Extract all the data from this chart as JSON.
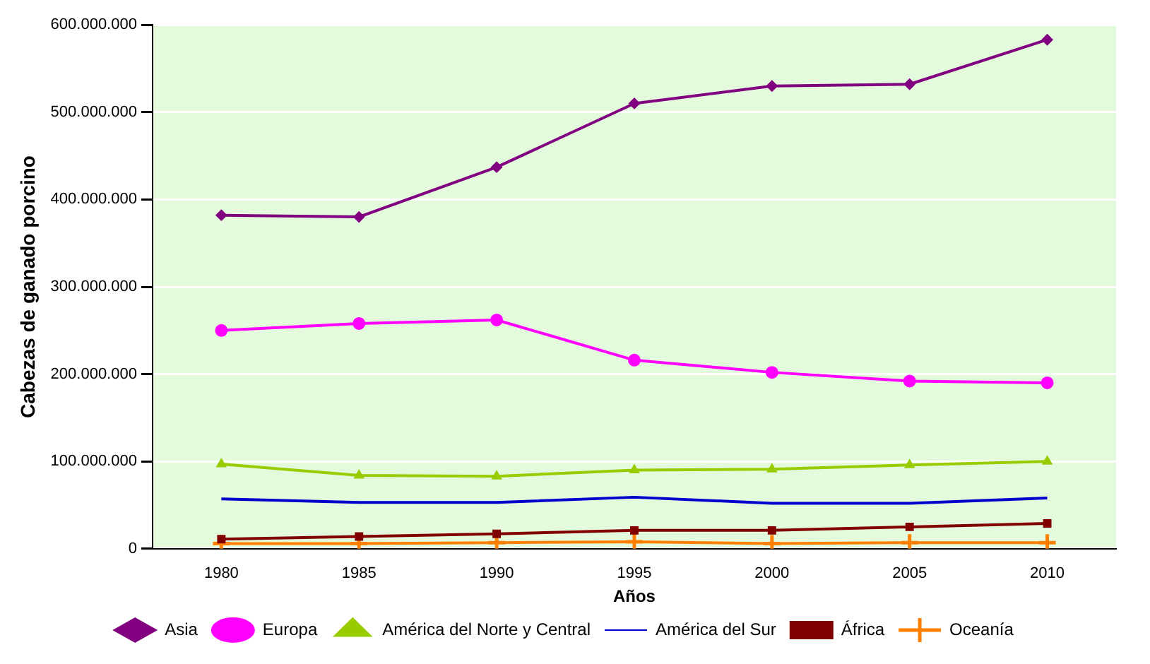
{
  "chart_data": {
    "type": "line",
    "xlabel": "Años",
    "ylabel": "Cabezas de ganado porcino",
    "categories": [
      "1980",
      "1985",
      "1990",
      "1995",
      "2000",
      "2005",
      "2010"
    ],
    "ylim": [
      0,
      600000000
    ],
    "yticks": [
      {
        "value": 0,
        "label": "0"
      },
      {
        "value": 100000000,
        "label": "100.000.000"
      },
      {
        "value": 200000000,
        "label": "200.000.000"
      },
      {
        "value": 300000000,
        "label": "300.000.000"
      },
      {
        "value": 400000000,
        "label": "400.000.000"
      },
      {
        "value": 500000000,
        "label": "500.000.000"
      },
      {
        "value": 600000000,
        "label": "600.000.000"
      }
    ],
    "grid": "y",
    "legend": "bottom",
    "line_style": "solid",
    "series": [
      {
        "name": "Asia",
        "color": "#800080",
        "marker": "diamond",
        "values": [
          382000000,
          380000000,
          437000000,
          510000000,
          530000000,
          532000000,
          583000000
        ]
      },
      {
        "name": "Europa",
        "color": "#ff00ff",
        "marker": "circle",
        "values": [
          250000000,
          258000000,
          262000000,
          216000000,
          202000000,
          192000000,
          190000000
        ]
      },
      {
        "name": "América del Norte y Central",
        "color": "#99cc00",
        "marker": "triangle",
        "values": [
          97000000,
          84000000,
          83000000,
          90000000,
          91000000,
          96000000,
          100000000
        ]
      },
      {
        "name": "América del Sur",
        "color": "#0000cc",
        "marker": "none",
        "values": [
          57000000,
          53000000,
          53000000,
          59000000,
          52000000,
          52000000,
          58000000
        ]
      },
      {
        "name": "África",
        "color": "#800000",
        "marker": "square",
        "values": [
          11000000,
          14000000,
          17000000,
          21000000,
          21000000,
          25000000,
          29000000
        ]
      },
      {
        "name": "Oceanía",
        "color": "#ff8000",
        "marker": "cross",
        "values": [
          6000000,
          6000000,
          7000000,
          8000000,
          6000000,
          7000000,
          7000000
        ]
      }
    ]
  }
}
